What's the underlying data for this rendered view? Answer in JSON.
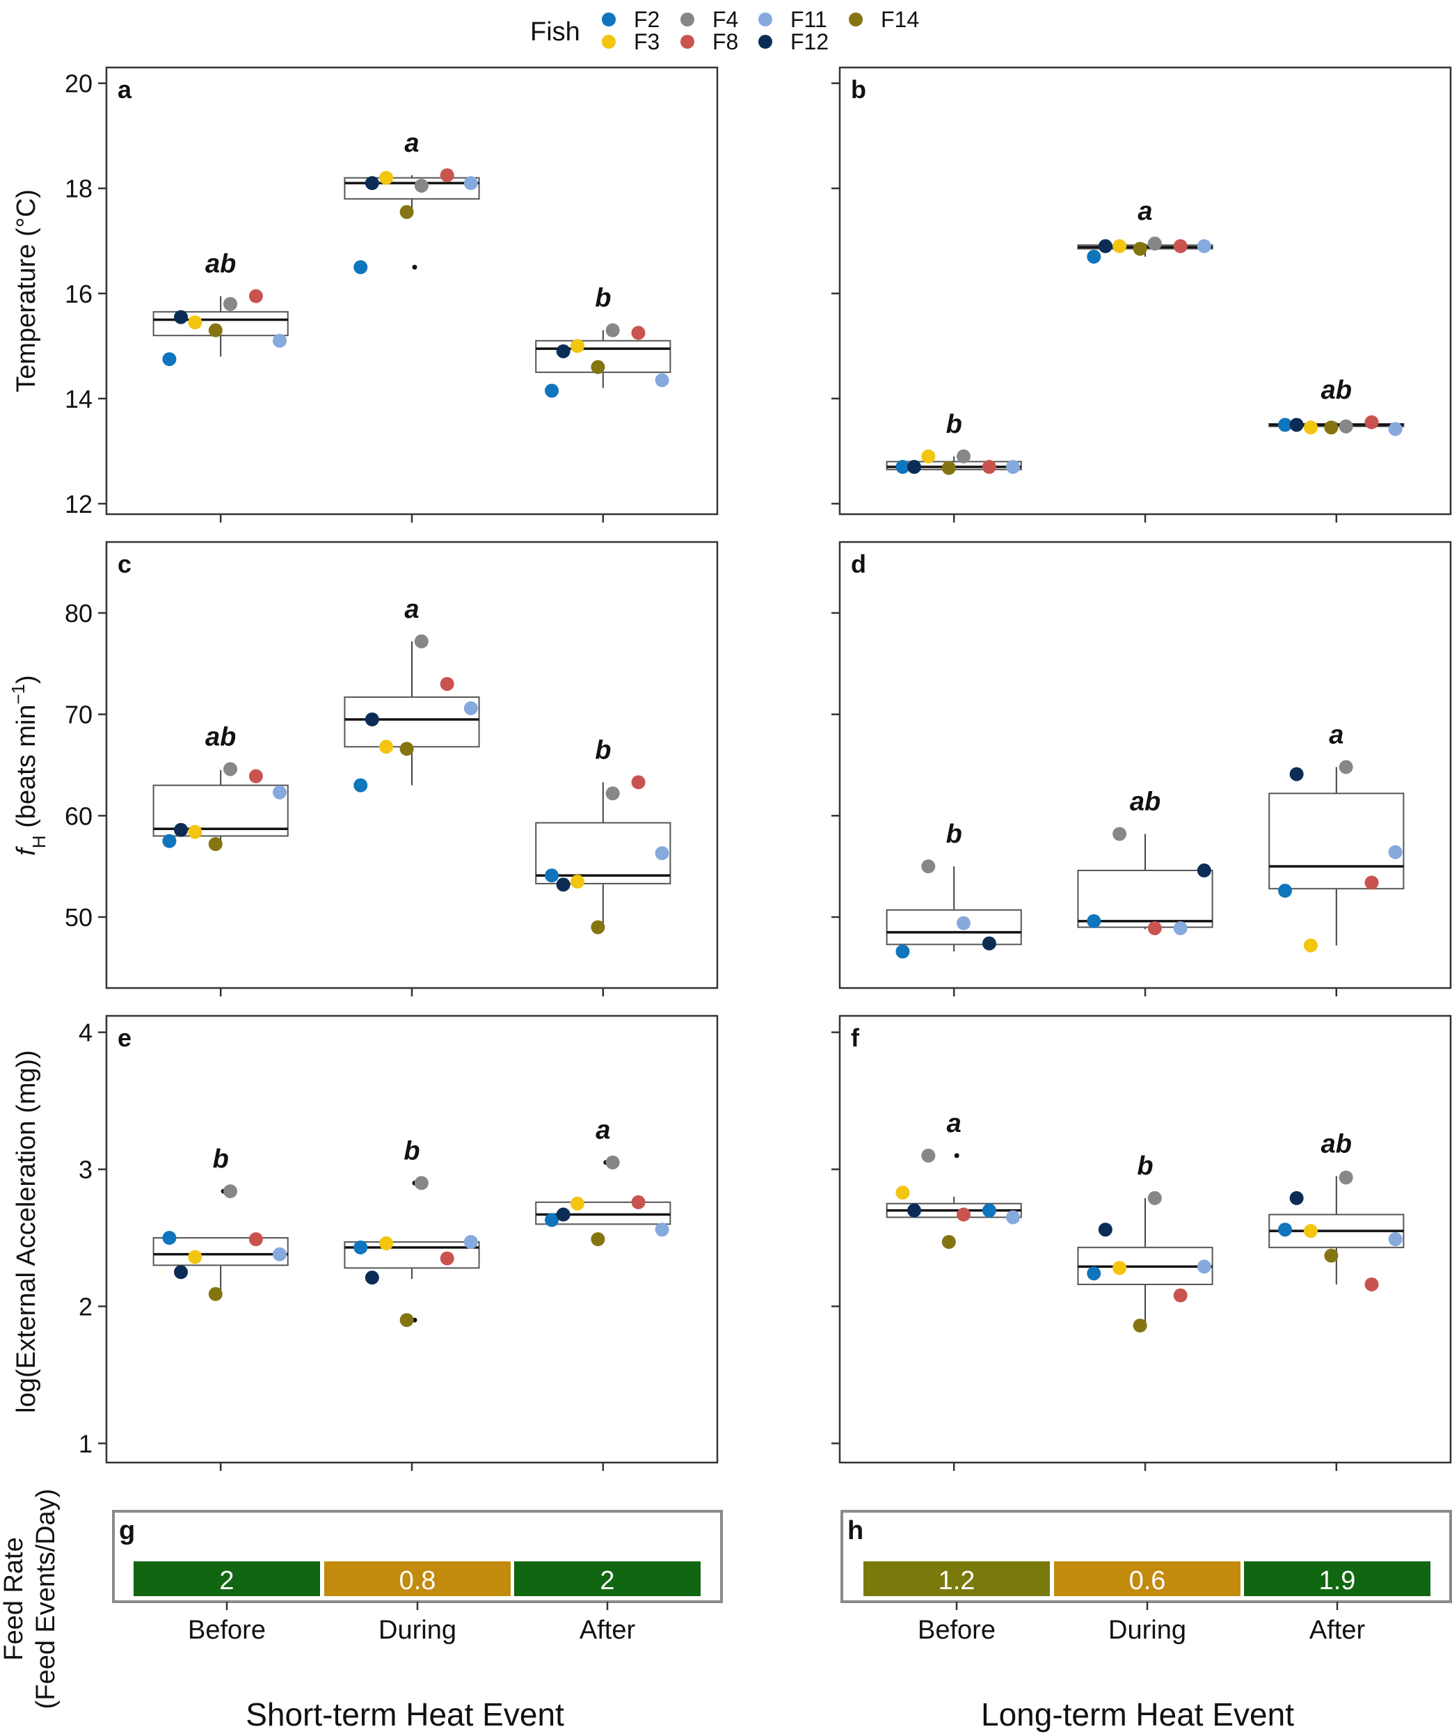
{
  "legend": {
    "title": "Fish",
    "entries": [
      {
        "label": "F2",
        "color": "#0f75bc"
      },
      {
        "label": "F3",
        "color": "#f2c511"
      },
      {
        "label": "F4",
        "color": "#878787"
      },
      {
        "label": "F8",
        "color": "#c9534f"
      },
      {
        "label": "F11",
        "color": "#86a9de"
      },
      {
        "label": "F12",
        "color": "#0b2d55"
      },
      {
        "label": "F14",
        "color": "#857512"
      }
    ]
  },
  "axis_labels": {
    "temperature": "Temperature (°C)",
    "heart_rate_main": "f",
    "heart_rate_sub": "H",
    "heart_rate_unit": " (beats min",
    "heart_rate_exp": "−1",
    "heart_rate_close": ")",
    "acceleration": "log(External Acceleration (mg))",
    "feed_line1": "Feed Rate",
    "feed_line2": "(Feed Events/Day)"
  },
  "conditions": [
    "Before",
    "During",
    "After"
  ],
  "column_titles": [
    "Short-term Heat Event",
    "Long-term Heat Event"
  ],
  "chart_data": [
    {
      "type": "box-scatter",
      "panel": "a",
      "ylabel": "Temperature (°C)",
      "ylim": [
        11.8,
        20.3
      ],
      "yticks": [
        "12",
        "14",
        "16",
        "18",
        "20"
      ],
      "ytick_values": [
        12,
        14,
        16,
        18,
        20
      ],
      "letters": [
        "ab",
        "a",
        "b"
      ],
      "boxes": [
        {
          "q1": 15.2,
          "median": 15.5,
          "q3": 15.65,
          "whisker_low": 14.8,
          "whisker_high": 15.95,
          "outliers": []
        },
        {
          "q1": 17.8,
          "median": 18.1,
          "q3": 18.2,
          "whisker_low": 17.6,
          "whisker_high": 18.25,
          "outliers": [
            16.5
          ]
        },
        {
          "q1": 14.5,
          "median": 14.95,
          "q3": 15.1,
          "whisker_low": 14.2,
          "whisker_high": 15.3,
          "outliers": []
        }
      ],
      "points": [
        [
          {
            "fish": "F2",
            "value": 14.75
          },
          {
            "fish": "F3",
            "value": 15.45
          },
          {
            "fish": "F4",
            "value": 15.8
          },
          {
            "fish": "F8",
            "value": 15.95
          },
          {
            "fish": "F11",
            "value": 15.1
          },
          {
            "fish": "F12",
            "value": 15.55
          },
          {
            "fish": "F14",
            "value": 15.3
          }
        ],
        [
          {
            "fish": "F2",
            "value": 16.5
          },
          {
            "fish": "F3",
            "value": 18.2
          },
          {
            "fish": "F4",
            "value": 18.05
          },
          {
            "fish": "F8",
            "value": 18.25
          },
          {
            "fish": "F11",
            "value": 18.1
          },
          {
            "fish": "F12",
            "value": 18.1
          },
          {
            "fish": "F14",
            "value": 17.55
          }
        ],
        [
          {
            "fish": "F2",
            "value": 14.15
          },
          {
            "fish": "F3",
            "value": 15.0
          },
          {
            "fish": "F4",
            "value": 15.3
          },
          {
            "fish": "F8",
            "value": 15.25
          },
          {
            "fish": "F11",
            "value": 14.35
          },
          {
            "fish": "F12",
            "value": 14.9
          },
          {
            "fish": "F14",
            "value": 14.6
          }
        ]
      ]
    },
    {
      "type": "box-scatter",
      "panel": "b",
      "ylabel": "Temperature (°C)",
      "ylim": [
        11.8,
        20.3
      ],
      "yticks": [
        "12",
        "14",
        "16",
        "18",
        "20"
      ],
      "ytick_values": [
        12,
        14,
        16,
        18,
        20
      ],
      "letters": [
        "b",
        "a",
        "ab"
      ],
      "boxes": [
        {
          "q1": 12.65,
          "median": 12.7,
          "q3": 12.8,
          "whisker_low": 12.65,
          "whisker_high": 12.9,
          "outliers": []
        },
        {
          "q1": 16.85,
          "median": 16.88,
          "q3": 16.92,
          "whisker_low": 16.7,
          "whisker_high": 16.95,
          "outliers": []
        },
        {
          "q1": 13.47,
          "median": 13.5,
          "q3": 13.52,
          "whisker_low": 13.45,
          "whisker_high": 13.55,
          "outliers": []
        }
      ],
      "points": [
        [
          {
            "fish": "F2",
            "value": 12.7
          },
          {
            "fish": "F3",
            "value": 12.9
          },
          {
            "fish": "F4",
            "value": 12.9
          },
          {
            "fish": "F8",
            "value": 12.7
          },
          {
            "fish": "F11",
            "value": 12.7
          },
          {
            "fish": "F12",
            "value": 12.7
          },
          {
            "fish": "F14",
            "value": 12.68
          }
        ],
        [
          {
            "fish": "F2",
            "value": 16.7
          },
          {
            "fish": "F3",
            "value": 16.9
          },
          {
            "fish": "F4",
            "value": 16.95
          },
          {
            "fish": "F8",
            "value": 16.9
          },
          {
            "fish": "F11",
            "value": 16.9
          },
          {
            "fish": "F12",
            "value": 16.9
          },
          {
            "fish": "F14",
            "value": 16.85
          }
        ],
        [
          {
            "fish": "F2",
            "value": 13.5
          },
          {
            "fish": "F3",
            "value": 13.45
          },
          {
            "fish": "F4",
            "value": 13.47
          },
          {
            "fish": "F8",
            "value": 13.55
          },
          {
            "fish": "F11",
            "value": 13.42
          },
          {
            "fish": "F12",
            "value": 13.5
          },
          {
            "fish": "F14",
            "value": 13.45
          }
        ]
      ]
    },
    {
      "type": "box-scatter",
      "panel": "c",
      "ylabel": "fH (beats min−1)",
      "ylim": [
        43,
        87
      ],
      "yticks": [
        "50",
        "60",
        "70",
        "80"
      ],
      "ytick_values": [
        50,
        60,
        70,
        80
      ],
      "letters": [
        "ab",
        "a",
        "b"
      ],
      "boxes": [
        {
          "q1": 58.0,
          "median": 58.7,
          "q3": 63.0,
          "whisker_low": 57.5,
          "whisker_high": 64.5,
          "outliers": []
        },
        {
          "q1": 66.8,
          "median": 69.5,
          "q3": 71.7,
          "whisker_low": 63.0,
          "whisker_high": 77.2,
          "outliers": []
        },
        {
          "q1": 53.3,
          "median": 54.1,
          "q3": 59.3,
          "whisker_low": 49.0,
          "whisker_high": 63.3,
          "outliers": []
        }
      ],
      "points": [
        [
          {
            "fish": "F2",
            "value": 57.5
          },
          {
            "fish": "F3",
            "value": 58.4
          },
          {
            "fish": "F4",
            "value": 64.6
          },
          {
            "fish": "F8",
            "value": 63.9
          },
          {
            "fish": "F11",
            "value": 62.3
          },
          {
            "fish": "F12",
            "value": 58.6
          },
          {
            "fish": "F14",
            "value": 57.2
          }
        ],
        [
          {
            "fish": "F2",
            "value": 63.0
          },
          {
            "fish": "F3",
            "value": 66.8
          },
          {
            "fish": "F4",
            "value": 77.2
          },
          {
            "fish": "F8",
            "value": 73.0
          },
          {
            "fish": "F11",
            "value": 70.6
          },
          {
            "fish": "F12",
            "value": 69.5
          },
          {
            "fish": "F14",
            "value": 66.6
          }
        ],
        [
          {
            "fish": "F2",
            "value": 54.1
          },
          {
            "fish": "F3",
            "value": 53.5
          },
          {
            "fish": "F4",
            "value": 62.2
          },
          {
            "fish": "F8",
            "value": 63.3
          },
          {
            "fish": "F11",
            "value": 56.3
          },
          {
            "fish": "F12",
            "value": 53.2
          },
          {
            "fish": "F14",
            "value": 49.0
          }
        ]
      ]
    },
    {
      "type": "box-scatter",
      "panel": "d",
      "ylabel": "fH (beats min−1)",
      "ylim": [
        43,
        87
      ],
      "yticks": [
        "50",
        "60",
        "70",
        "80"
      ],
      "ytick_values": [
        50,
        60,
        70,
        80
      ],
      "letters": [
        "b",
        "ab",
        "a"
      ],
      "boxes": [
        {
          "q1": 47.3,
          "median": 48.5,
          "q3": 50.7,
          "whisker_low": 46.6,
          "whisker_high": 55.0,
          "outliers": []
        },
        {
          "q1": 49.0,
          "median": 49.6,
          "q3": 54.6,
          "whisker_low": 48.8,
          "whisker_high": 58.2,
          "outliers": []
        },
        {
          "q1": 52.8,
          "median": 55.0,
          "q3": 62.2,
          "whisker_low": 47.2,
          "whisker_high": 64.8,
          "outliers": []
        }
      ],
      "points": [
        [
          {
            "fish": "F2",
            "value": 46.6
          },
          {
            "fish": "F4",
            "value": 55.0
          },
          {
            "fish": "F11",
            "value": 49.4
          },
          {
            "fish": "F12",
            "value": 47.4
          }
        ],
        [
          {
            "fish": "F2",
            "value": 49.6
          },
          {
            "fish": "F4",
            "value": 58.2
          },
          {
            "fish": "F8",
            "value": 48.9
          },
          {
            "fish": "F11",
            "value": 48.9
          },
          {
            "fish": "F12",
            "value": 54.6
          }
        ],
        [
          {
            "fish": "F2",
            "value": 52.6
          },
          {
            "fish": "F3",
            "value": 47.2
          },
          {
            "fish": "F4",
            "value": 64.8
          },
          {
            "fish": "F8",
            "value": 53.4
          },
          {
            "fish": "F11",
            "value": 56.4
          },
          {
            "fish": "F12",
            "value": 64.1
          }
        ]
      ]
    },
    {
      "type": "box-scatter",
      "panel": "e",
      "ylabel": "log(External Acceleration (mg))",
      "ylim": [
        0.86,
        4.12
      ],
      "yticks": [
        "1",
        "2",
        "3",
        "4"
      ],
      "ytick_values": [
        1,
        2,
        3,
        4
      ],
      "letters": [
        "b",
        "b",
        "a"
      ],
      "boxes": [
        {
          "q1": 2.3,
          "median": 2.38,
          "q3": 2.5,
          "whisker_low": 2.1,
          "whisker_high": 2.5,
          "outliers": [
            2.84
          ]
        },
        {
          "q1": 2.28,
          "median": 2.43,
          "q3": 2.47,
          "whisker_low": 2.2,
          "whisker_high": 2.47,
          "outliers": [
            2.9,
            1.9
          ]
        },
        {
          "q1": 2.6,
          "median": 2.67,
          "q3": 2.76,
          "whisker_low": 2.6,
          "whisker_high": 2.76,
          "outliers": [
            3.05
          ]
        }
      ],
      "points": [
        [
          {
            "fish": "F2",
            "value": 2.5
          },
          {
            "fish": "F3",
            "value": 2.36
          },
          {
            "fish": "F4",
            "value": 2.84
          },
          {
            "fish": "F8",
            "value": 2.49
          },
          {
            "fish": "F11",
            "value": 2.38
          },
          {
            "fish": "F12",
            "value": 2.25
          },
          {
            "fish": "F14",
            "value": 2.09
          }
        ],
        [
          {
            "fish": "F2",
            "value": 2.43
          },
          {
            "fish": "F3",
            "value": 2.46
          },
          {
            "fish": "F4",
            "value": 2.9
          },
          {
            "fish": "F8",
            "value": 2.35
          },
          {
            "fish": "F11",
            "value": 2.47
          },
          {
            "fish": "F12",
            "value": 2.21
          },
          {
            "fish": "F14",
            "value": 1.9
          }
        ],
        [
          {
            "fish": "F2",
            "value": 2.63
          },
          {
            "fish": "F3",
            "value": 2.75
          },
          {
            "fish": "F4",
            "value": 3.05
          },
          {
            "fish": "F8",
            "value": 2.76
          },
          {
            "fish": "F11",
            "value": 2.56
          },
          {
            "fish": "F12",
            "value": 2.67
          },
          {
            "fish": "F14",
            "value": 2.49
          }
        ]
      ]
    },
    {
      "type": "box-scatter",
      "panel": "f",
      "ylabel": "log(External Acceleration (mg))",
      "ylim": [
        0.86,
        4.12
      ],
      "yticks": [
        "1",
        "2",
        "3",
        "4"
      ],
      "ytick_values": [
        1,
        2,
        3,
        4
      ],
      "letters": [
        "a",
        "b",
        "ab"
      ],
      "boxes": [
        {
          "q1": 2.65,
          "median": 2.7,
          "q3": 2.75,
          "whisker_low": 2.65,
          "whisker_high": 2.8,
          "outliers": [
            3.1
          ]
        },
        {
          "q1": 2.16,
          "median": 2.29,
          "q3": 2.43,
          "whisker_low": 1.86,
          "whisker_high": 2.79,
          "outliers": []
        },
        {
          "q1": 2.43,
          "median": 2.55,
          "q3": 2.67,
          "whisker_low": 2.16,
          "whisker_high": 2.95,
          "outliers": []
        }
      ],
      "points": [
        [
          {
            "fish": "F3",
            "value": 2.83
          },
          {
            "fish": "F4",
            "value": 3.1
          },
          {
            "fish": "F8",
            "value": 2.67
          },
          {
            "fish": "F2",
            "value": 2.7
          },
          {
            "fish": "F11",
            "value": 2.65
          },
          {
            "fish": "F12",
            "value": 2.7
          },
          {
            "fish": "F14",
            "value": 2.47
          }
        ],
        [
          {
            "fish": "F2",
            "value": 2.24
          },
          {
            "fish": "F3",
            "value": 2.28
          },
          {
            "fish": "F4",
            "value": 2.79
          },
          {
            "fish": "F8",
            "value": 2.08
          },
          {
            "fish": "F11",
            "value": 2.29
          },
          {
            "fish": "F12",
            "value": 2.56
          },
          {
            "fish": "F14",
            "value": 1.86
          }
        ],
        [
          {
            "fish": "F2",
            "value": 2.56
          },
          {
            "fish": "F3",
            "value": 2.55
          },
          {
            "fish": "F4",
            "value": 2.94
          },
          {
            "fish": "F8",
            "value": 2.16
          },
          {
            "fish": "F11",
            "value": 2.49
          },
          {
            "fish": "F12",
            "value": 2.79
          },
          {
            "fish": "F14",
            "value": 2.37
          }
        ]
      ]
    },
    {
      "type": "table",
      "panel": "g",
      "ylabel": "Feed Rate (Feed Events/Day)",
      "categories": [
        "Before",
        "During",
        "After"
      ],
      "values": [
        "2",
        "0.8",
        "2"
      ],
      "colors": [
        "#116611",
        "#c28b0d",
        "#116611"
      ]
    },
    {
      "type": "table",
      "panel": "h",
      "ylabel": "Feed Rate (Feed Events/Day)",
      "categories": [
        "Before",
        "During",
        "After"
      ],
      "values": [
        "1.2",
        "0.6",
        "1.9"
      ],
      "colors": [
        "#7a7a0c",
        "#c28b0d",
        "#116611"
      ]
    }
  ]
}
